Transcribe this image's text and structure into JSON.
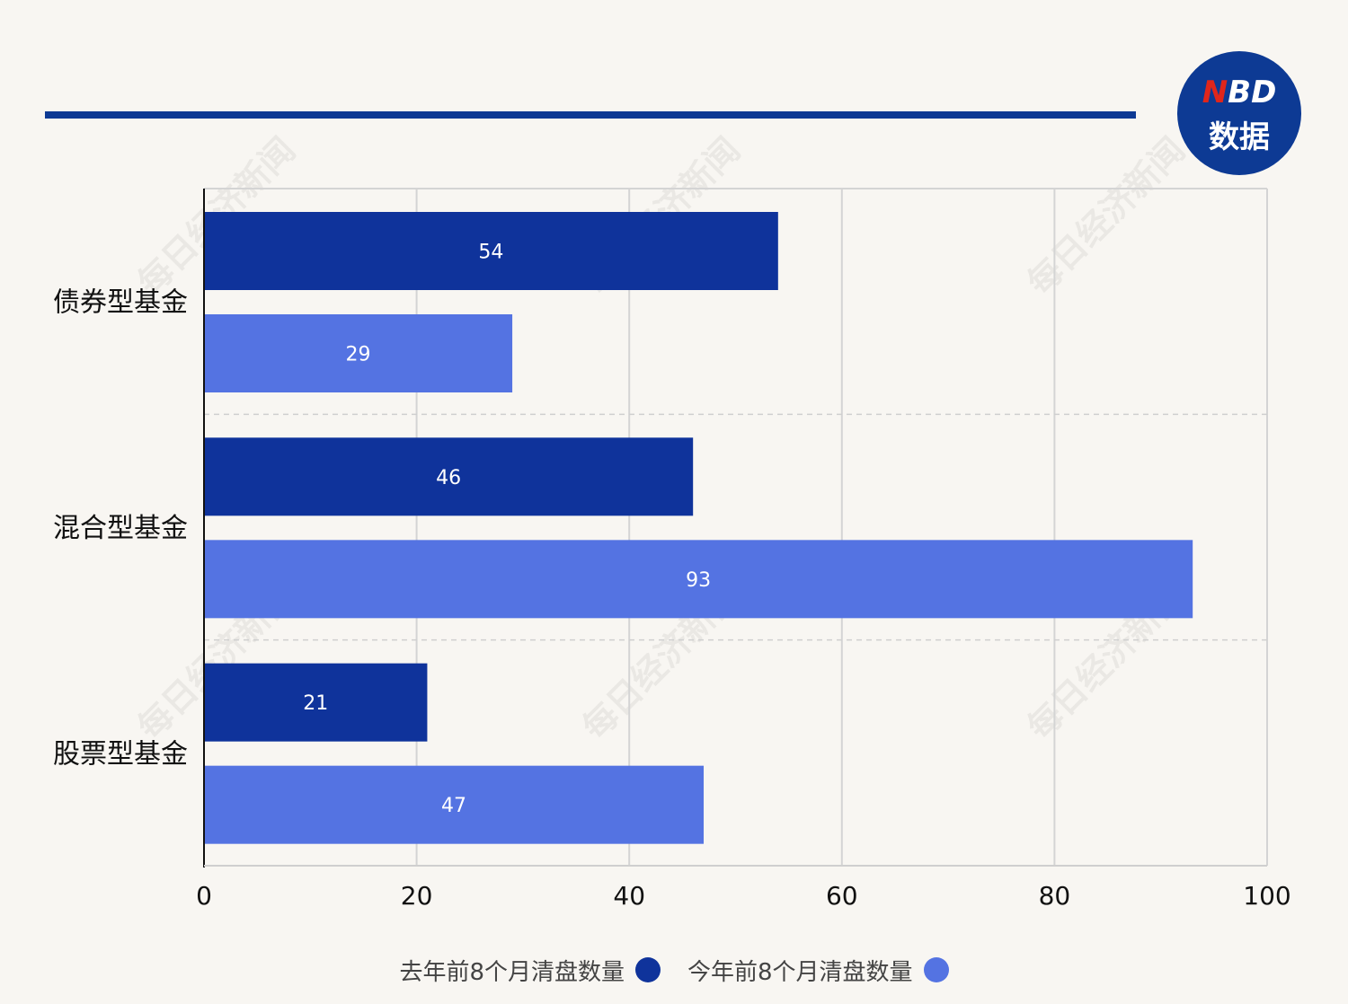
{
  "logo": {
    "line1_red": "N",
    "line1_rest": "BD",
    "line2": "数据"
  },
  "watermark_text": "每日经济新闻",
  "colors": {
    "series_last_year": "#0f339b",
    "series_this_year": "#5473e2",
    "rule": "#0d3a94"
  },
  "chart_data": {
    "type": "bar",
    "orientation": "horizontal",
    "categories": [
      "债券型基金",
      "混合型基金",
      "股票型基金"
    ],
    "series": [
      {
        "name": "去年前8个月清盘数量",
        "values": [
          54,
          46,
          21
        ]
      },
      {
        "name": "今年前8个月清盘数量",
        "values": [
          29,
          93,
          47
        ]
      }
    ],
    "xlim": [
      0,
      100
    ],
    "xticks": [
      0,
      20,
      40,
      60,
      80,
      100
    ],
    "grid": true,
    "legend_position": "bottom"
  }
}
